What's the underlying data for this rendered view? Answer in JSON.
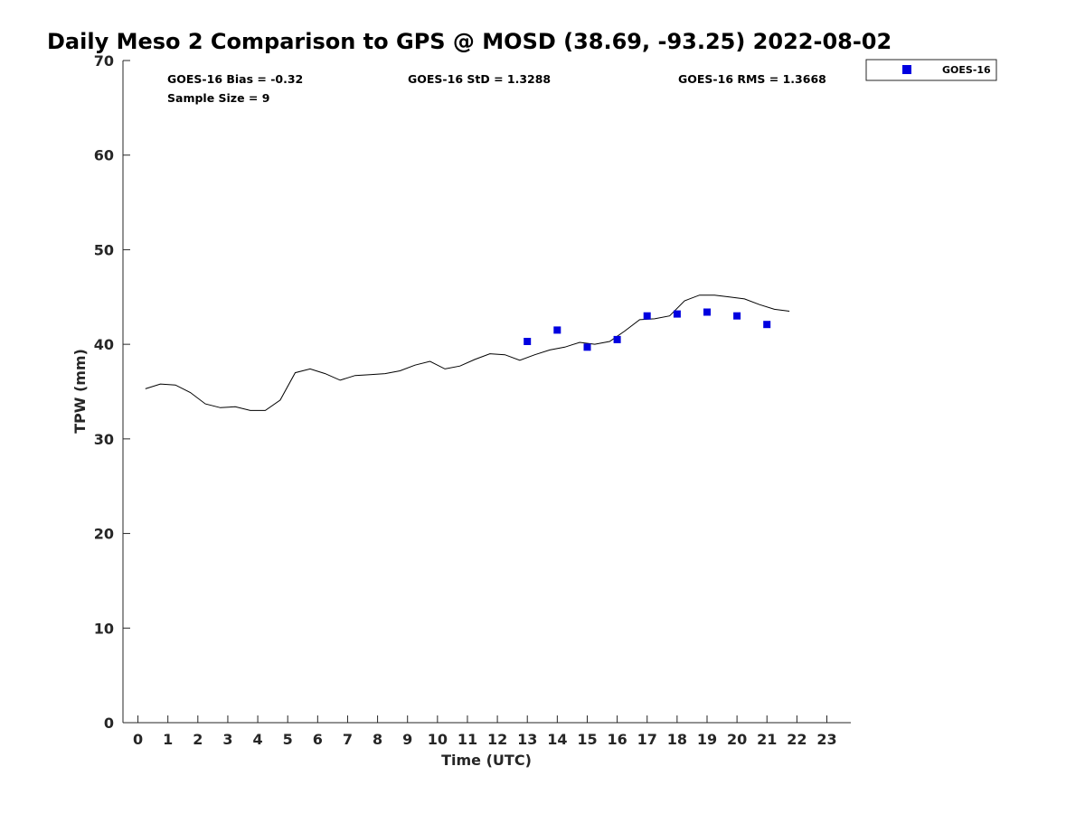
{
  "chart_data": {
    "type": "scatter",
    "title": "Daily Meso 2 Comparison to GPS @ MOSD (38.69, -93.25) 2022-08-02",
    "xlabel": "Time (UTC)",
    "ylabel": "TPW (mm)",
    "xlim": [
      -0.5,
      23.8
    ],
    "ylim": [
      0,
      70
    ],
    "xticks": [
      0,
      1,
      2,
      3,
      4,
      5,
      6,
      7,
      8,
      9,
      10,
      11,
      12,
      13,
      14,
      15,
      16,
      17,
      18,
      19,
      20,
      21,
      22,
      23
    ],
    "yticks": [
      0,
      10,
      20,
      30,
      40,
      50,
      60,
      70
    ],
    "grid": false,
    "legend_position": "top-right-outside",
    "stats": {
      "bias": "GOES-16 Bias = -0.32",
      "std": "GOES-16 StD = 1.3288",
      "rms": "GOES-16 RMS = 1.3668",
      "sample": "Sample Size = 9"
    },
    "gps_line": {
      "color": "#000000",
      "x": [
        0.25,
        0.75,
        1.25,
        1.75,
        2.25,
        2.75,
        3.25,
        3.75,
        4.25,
        4.75,
        5.25,
        5.75,
        6.25,
        6.75,
        7.25,
        7.75,
        8.25,
        8.75,
        9.25,
        9.75,
        10.25,
        10.75,
        11.25,
        11.75,
        12.25,
        12.75,
        13.25,
        13.75,
        14.25,
        14.75,
        15.25,
        15.75,
        16.25,
        16.75,
        17.25,
        17.75,
        18.25,
        18.75,
        19.25,
        19.75,
        20.25,
        20.75,
        21.25,
        21.75
      ],
      "y": [
        35.3,
        35.8,
        35.7,
        34.9,
        33.7,
        33.3,
        33.4,
        33.0,
        33.0,
        34.1,
        37.0,
        37.4,
        36.9,
        36.2,
        36.7,
        36.8,
        36.9,
        37.2,
        37.8,
        38.2,
        37.4,
        37.7,
        38.4,
        39.0,
        38.9,
        38.3,
        38.9,
        39.4,
        39.7,
        40.2,
        40.0,
        40.3,
        41.4,
        42.6,
        42.7,
        43.0,
        44.6,
        45.2,
        45.2,
        45.0,
        44.8,
        44.2,
        43.7,
        43.5
      ]
    },
    "series": [
      {
        "name": "GOES-16",
        "color": "#0000e0",
        "marker": "square",
        "x": [
          13,
          14,
          15,
          16,
          17,
          18,
          19,
          20,
          21
        ],
        "y": [
          40.3,
          41.5,
          39.7,
          40.5,
          43.0,
          43.2,
          43.4,
          43.0,
          42.1
        ]
      }
    ]
  }
}
